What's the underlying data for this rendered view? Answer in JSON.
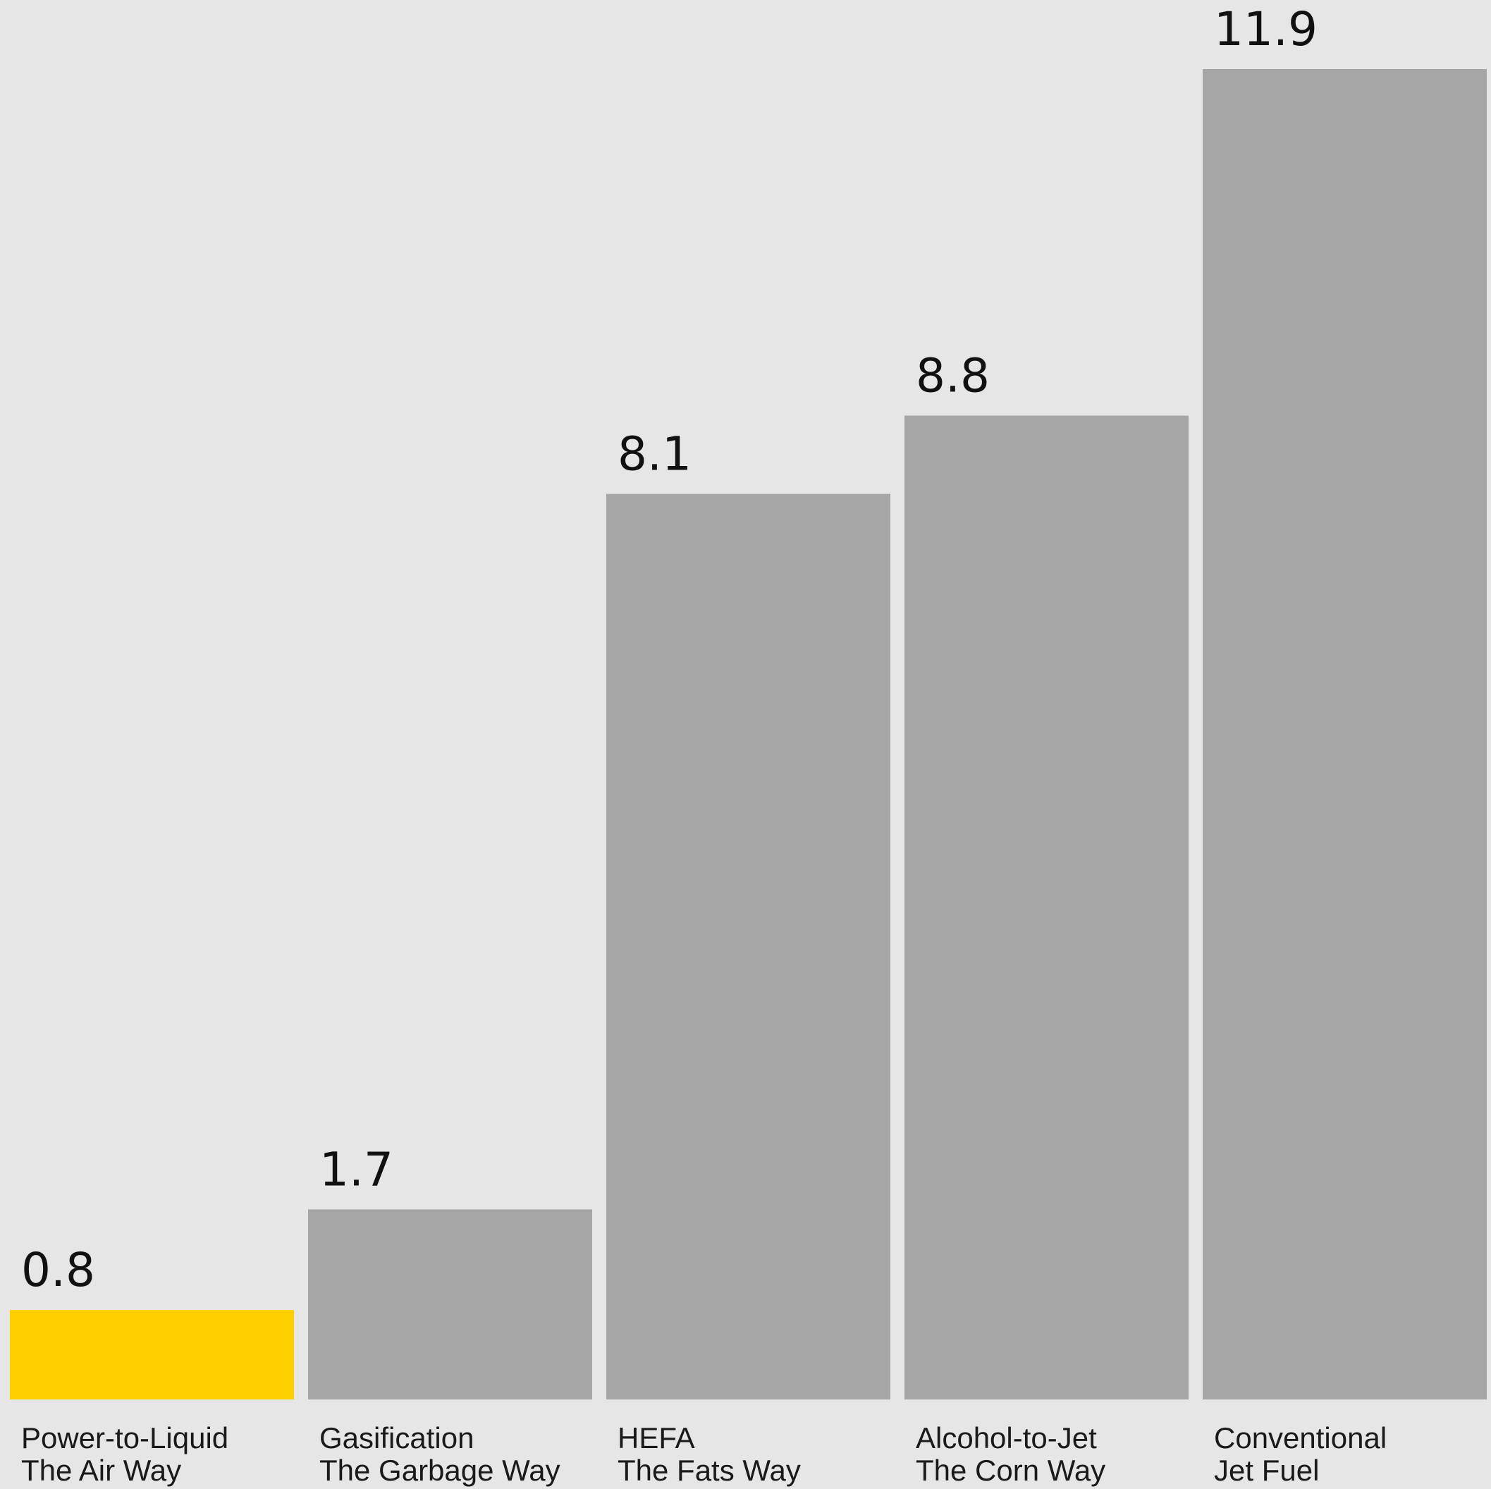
{
  "chart_data": {
    "type": "bar",
    "categories": [
      {
        "line1": "Power-to-Liquid",
        "line2": "The Air Way"
      },
      {
        "line1": "Gasification",
        "line2": "The Garbage Way"
      },
      {
        "line1": "HEFA",
        "line2": "The Fats Way"
      },
      {
        "line1": "Alcohol-to-Jet",
        "line2": "The Corn Way"
      },
      {
        "line1": "Conventional",
        "line2": "Jet Fuel"
      }
    ],
    "values": [
      0.8,
      1.7,
      8.1,
      8.8,
      11.9
    ],
    "value_labels": [
      "0.8",
      "1.7",
      "8.1",
      "8.8",
      "11.9"
    ],
    "ylim": [
      0,
      11.9
    ],
    "grid": false,
    "colors": {
      "highlight": "#ffd000",
      "bar": "#a6a6a6",
      "background": "#e6e6e6",
      "text": "#111111"
    },
    "highlight_index": 0
  }
}
